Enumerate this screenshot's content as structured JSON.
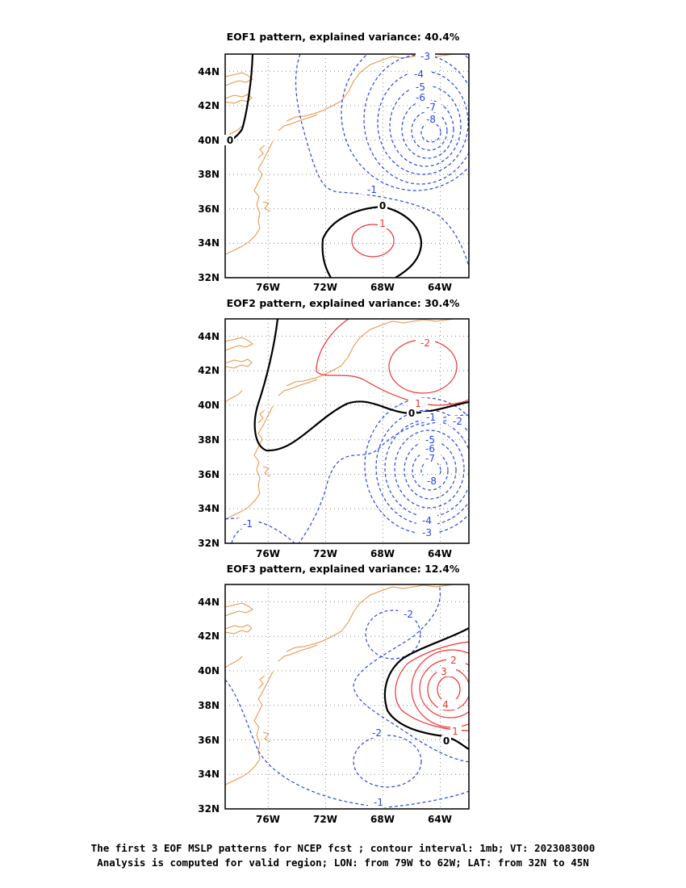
{
  "panels": [
    {
      "title": "EOF1 pattern, explained variance: 40.4%"
    },
    {
      "title": "EOF2 pattern, explained variance: 30.4%"
    },
    {
      "title": "EOF3 pattern, explained variance: 12.4%"
    }
  ],
  "footer": {
    "line1": "The first 3 EOF MSLP patterns for NCEP fcst ; contour interval: 1mb; VT: 2023083000",
    "line2": "Analysis is computed for valid region; LON: from 79W to 62W; LAT: from 32N to 45N"
  },
  "colors": {
    "positive": "#ee3333",
    "negative": "#2244ee",
    "zero": "#000000",
    "coast": "#e89040",
    "grid": "#888888"
  },
  "chart_data": [
    {
      "type": "contour",
      "title": "EOF1 pattern, explained variance: 40.4%",
      "xlim": [
        -79,
        -62
      ],
      "ylim": [
        32,
        45
      ],
      "x_ticks": [
        "76W",
        "72W",
        "68W",
        "64W"
      ],
      "y_ticks": [
        "32N",
        "34N",
        "36N",
        "38N",
        "40N",
        "42N",
        "44N"
      ],
      "centers": [
        {
          "lon": -65.3,
          "lat": 40.2,
          "value": -8.5,
          "kind": "min"
        },
        {
          "lon": -69.5,
          "lat": 34.0,
          "value": 1.4,
          "kind": "max"
        }
      ],
      "contour_labels": [
        "-3",
        "-4",
        "-5",
        "-6",
        "-7",
        "-8",
        "-1",
        "0",
        "0",
        "1"
      ]
    },
    {
      "type": "contour",
      "title": "EOF2 pattern, explained variance: 30.4%",
      "xlim": [
        -79,
        -62
      ],
      "ylim": [
        32,
        45
      ],
      "x_ticks": [
        "76W",
        "72W",
        "68W",
        "64W"
      ],
      "y_ticks": [
        "32N",
        "34N",
        "36N",
        "38N",
        "40N",
        "42N",
        "44N"
      ],
      "centers": [
        {
          "lon": -65.3,
          "lat": 36.3,
          "value": -8.6,
          "kind": "min"
        },
        {
          "lon": -65.5,
          "lat": 42.2,
          "value": 2.6,
          "kind": "max"
        }
      ],
      "contour_labels": [
        "-2",
        "1",
        "0",
        "-1",
        "-2",
        "-5",
        "-6",
        "-7",
        "-8",
        "-4",
        "-3",
        "-1"
      ]
    },
    {
      "type": "contour",
      "title": "EOF3 pattern, explained variance: 12.4%",
      "xlim": [
        -79,
        -62
      ],
      "ylim": [
        32,
        45
      ],
      "x_ticks": [
        "76W",
        "72W",
        "68W",
        "64W"
      ],
      "y_ticks": [
        "32N",
        "34N",
        "36N",
        "38N",
        "40N",
        "42N",
        "44N"
      ],
      "centers": [
        {
          "lon": -63.5,
          "lat": 38.9,
          "value": 4.6,
          "kind": "max"
        },
        {
          "lon": -67.3,
          "lat": 41.9,
          "value": -2.5,
          "kind": "min"
        },
        {
          "lon": -68.0,
          "lat": 34.9,
          "value": -2.6,
          "kind": "min"
        }
      ],
      "contour_labels": [
        "-2",
        "2",
        "3",
        "4",
        "-2",
        "1",
        "0",
        "-1"
      ]
    }
  ]
}
